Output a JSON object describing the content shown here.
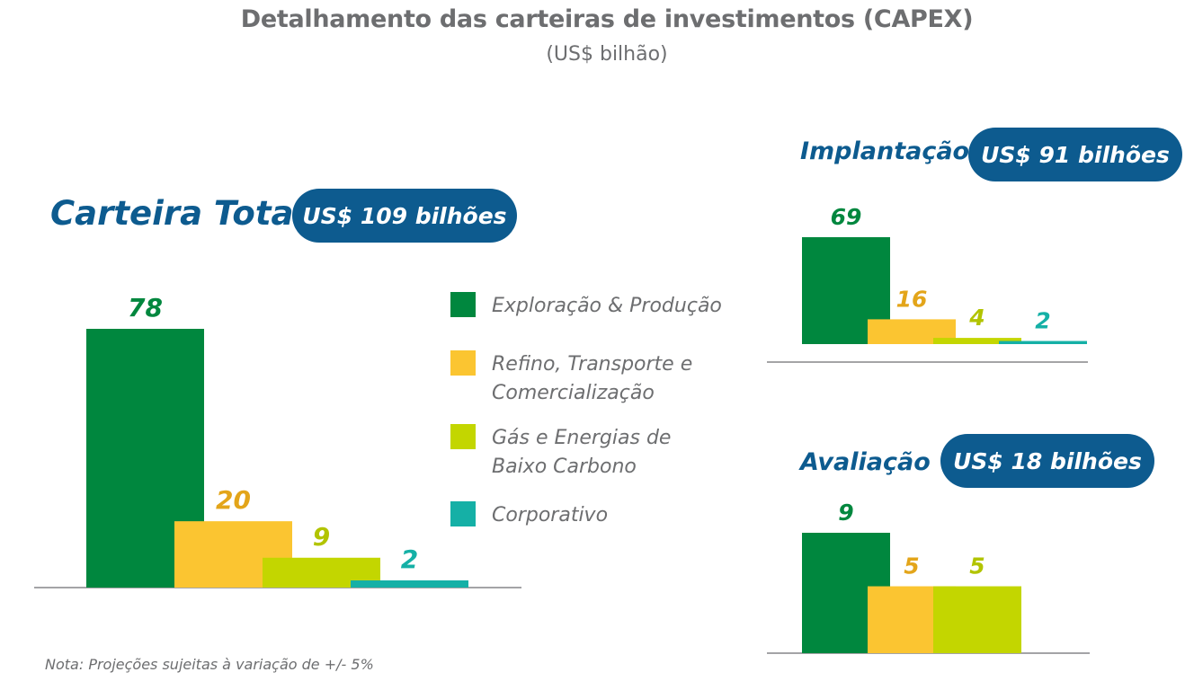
{
  "header": {
    "title": "Detalhamento das carteiras de investimentos (CAPEX)",
    "subtitle": "(US$ bilhão)"
  },
  "colors": {
    "ep": "#00873e",
    "rtc": "#fbc531",
    "gas": "#c3d600",
    "corp": "#15b0a6",
    "navy": "#0d5b8f",
    "axis": "#6d6e70"
  },
  "legend": [
    {
      "label": "Exploração & Produção",
      "color": "#00873e"
    },
    {
      "label": "Refino, Transporte e Comercialização",
      "color": "#fbc531"
    },
    {
      "label": "Gás e Energias de Baixo Carbono",
      "color": "#c3d600"
    },
    {
      "label": "Corporativo",
      "color": "#15b0a6"
    }
  ],
  "note": "Nota: Projeções sujeitas à variação de +/- 5%",
  "chart_data": [
    {
      "type": "bar",
      "title": "Carteira Total",
      "total_label": "US$ 109 bilhões",
      "categories": [
        "Exploração & Produção",
        "Refino, Transporte e Comercialização",
        "Gás e Energias de Baixo Carbono",
        "Corporativo"
      ],
      "values": [
        78,
        20,
        9,
        2
      ],
      "value_labels": [
        "78",
        "20",
        "9",
        "2"
      ],
      "label_colors": [
        "#00873e",
        "#e3a51a",
        "#b2c400",
        "#15b0a6"
      ],
      "ylim": [
        0,
        78
      ]
    },
    {
      "type": "bar",
      "title": "Implantação",
      "total_label": "US$ 91 bilhões",
      "categories": [
        "Exploração & Produção",
        "Refino, Transporte e Comercialização",
        "Gás e Energias de Baixo Carbono",
        "Corporativo"
      ],
      "values": [
        69,
        16,
        4,
        2
      ],
      "value_labels": [
        "69",
        "16",
        "4",
        "2"
      ],
      "label_colors": [
        "#00873e",
        "#e3a51a",
        "#b2c400",
        "#15b0a6"
      ],
      "ylim": [
        0,
        69
      ]
    },
    {
      "type": "bar",
      "title": "Avaliação",
      "total_label": "US$ 18 bilhões",
      "categories": [
        "Exploração & Produção",
        "Refino, Transporte e Comercialização",
        "Gás e Energias de Baixo Carbono"
      ],
      "values": [
        9,
        5,
        5
      ],
      "value_labels": [
        "9",
        "5",
        "5"
      ],
      "label_colors": [
        "#00873e",
        "#e3a51a",
        "#b2c400"
      ],
      "ylim": [
        0,
        9
      ]
    }
  ]
}
